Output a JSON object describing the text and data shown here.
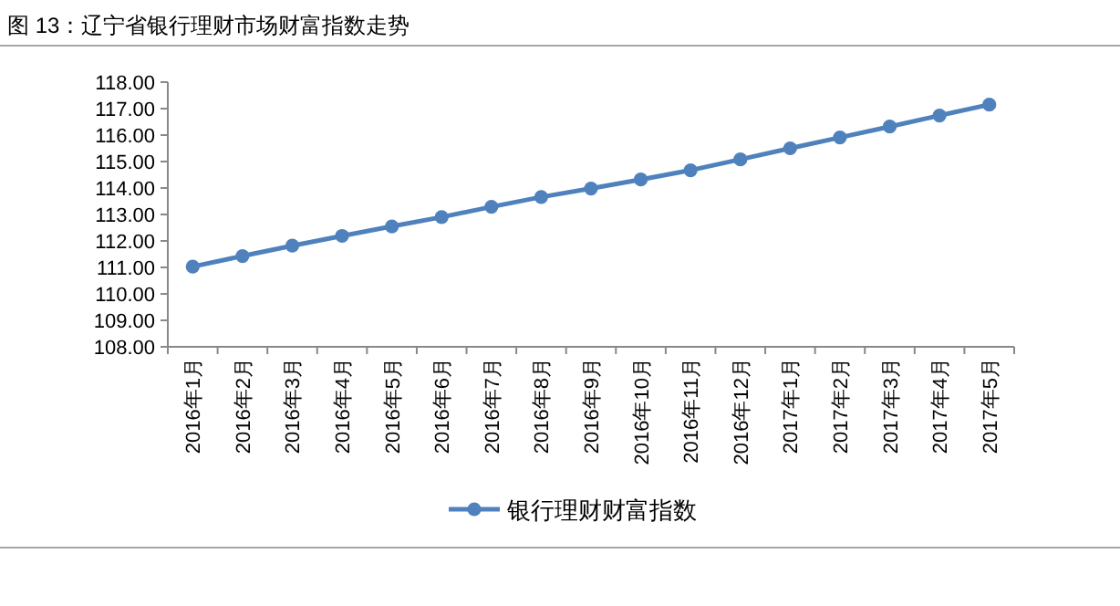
{
  "chart_data": {
    "type": "line",
    "title": "图 13：辽宁省银行理财市场财富指数走势",
    "categories": [
      "2016年1月",
      "2016年2月",
      "2016年3月",
      "2016年4月",
      "2016年5月",
      "2016年6月",
      "2016年7月",
      "2016年8月",
      "2016年9月",
      "2016年10月",
      "2016年11月",
      "2016年12月",
      "2017年1月",
      "2017年2月",
      "2017年3月",
      "2017年4月",
      "2017年5月"
    ],
    "series": [
      {
        "name": "银行理财财富指数",
        "color": "#4f81bd",
        "values": [
          111.03,
          111.43,
          111.82,
          112.19,
          112.55,
          112.9,
          113.29,
          113.66,
          113.98,
          114.32,
          114.67,
          115.08,
          115.5,
          115.91,
          116.32,
          116.74,
          117.15
        ]
      }
    ],
    "ylim": [
      108,
      118
    ],
    "yticks": [
      {
        "value": 108,
        "label": "108.00"
      },
      {
        "value": 109,
        "label": "109.00"
      },
      {
        "value": 110,
        "label": "110.00"
      },
      {
        "value": 111,
        "label": "111.00"
      },
      {
        "value": 112,
        "label": "112.00"
      },
      {
        "value": 113,
        "label": "113.00"
      },
      {
        "value": 114,
        "label": "114.00"
      },
      {
        "value": 115,
        "label": "115.00"
      },
      {
        "value": 116,
        "label": "116.00"
      },
      {
        "value": 117,
        "label": "117.00"
      },
      {
        "value": 118,
        "label": "118.00"
      }
    ],
    "grid": false,
    "legend": "bottom",
    "marker": "circle",
    "line_style": "solid"
  }
}
